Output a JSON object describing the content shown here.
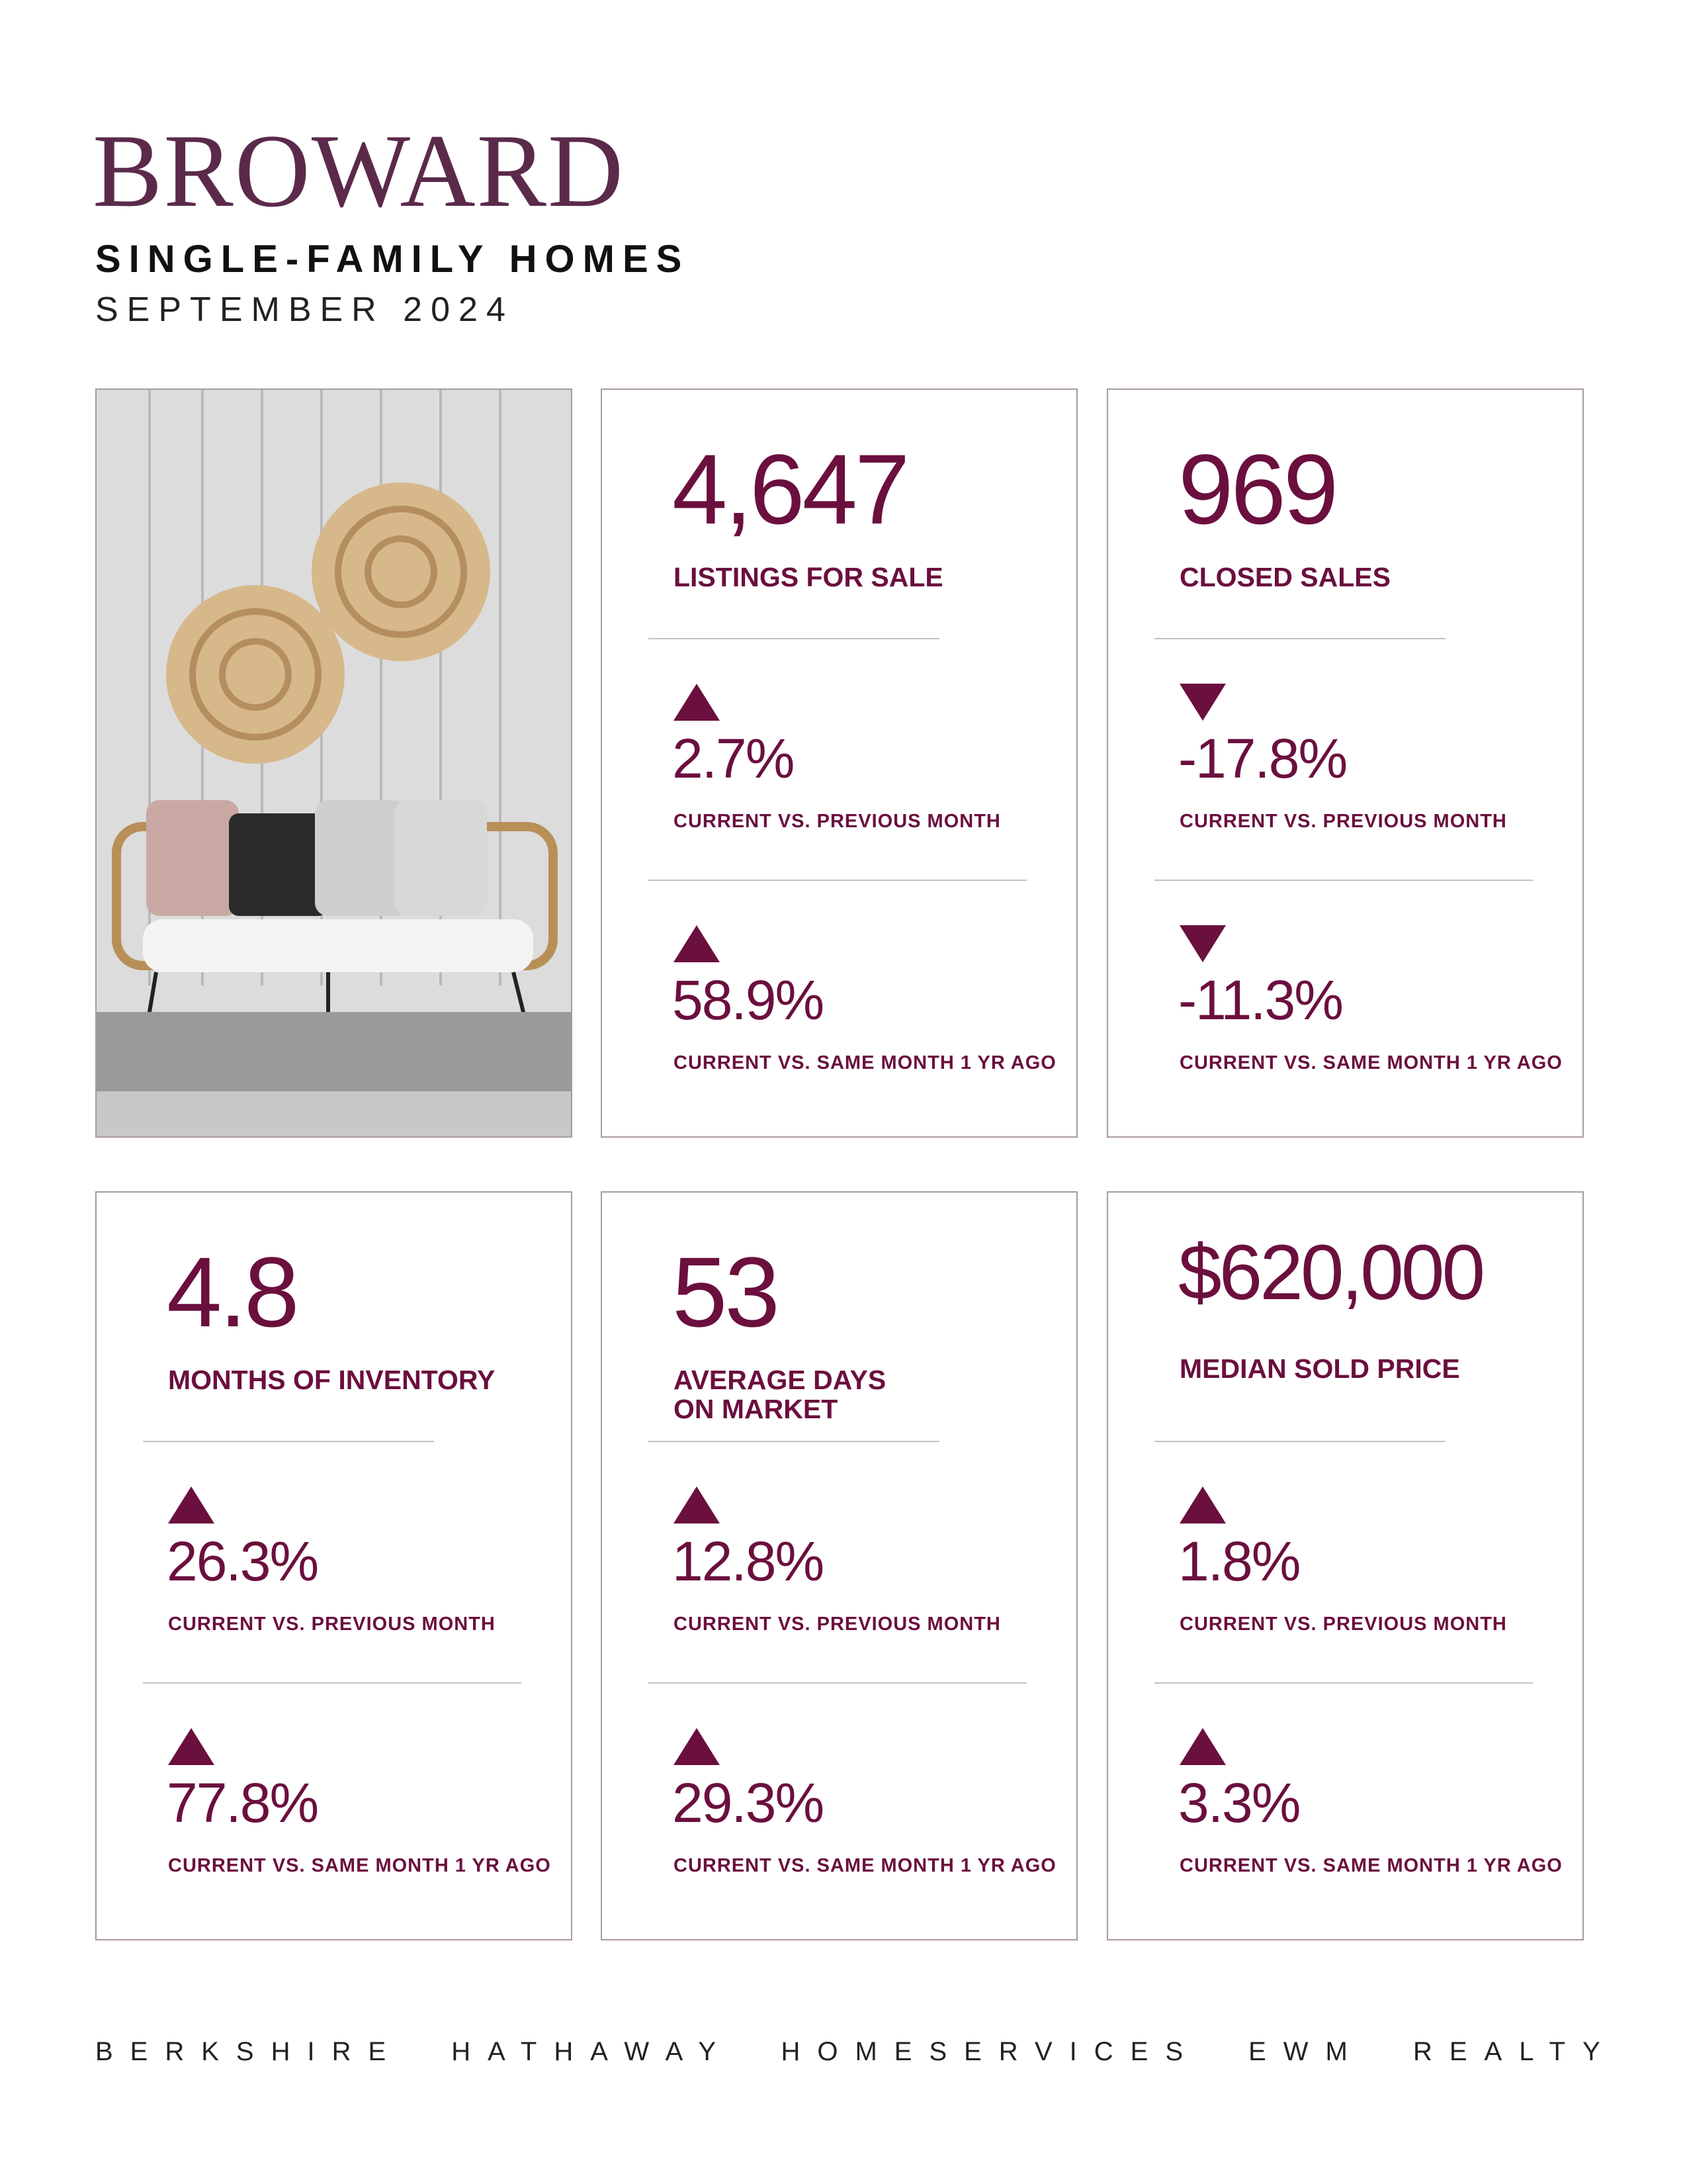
{
  "header": {
    "title": "BROWARD",
    "subtitle": "SINGLE-FAMILY HOMES",
    "date": "SEPTEMBER 2024"
  },
  "cards": [
    {
      "value": "4,647",
      "label": "LISTINGS FOR SALE",
      "changes": [
        {
          "value": "2.7%",
          "label": "CURRENT VS. PREVIOUS MONTH"
        },
        {
          "value": "58.9%",
          "label": "CURRENT VS. SAME MONTH 1 YR AGO"
        }
      ]
    },
    {
      "value": "969",
      "label": "CLOSED SALES",
      "changes": [
        {
          "value": "-17.8%",
          "label": "CURRENT VS. PREVIOUS MONTH"
        },
        {
          "value": "-11.3%",
          "label": "CURRENT VS. SAME MONTH 1 YR AGO"
        }
      ]
    },
    {
      "value": "4.8",
      "label": "MONTHS OF INVENTORY",
      "changes": [
        {
          "value": "26.3%",
          "label": "CURRENT VS. PREVIOUS MONTH"
        },
        {
          "value": "77.8%",
          "label": "CURRENT VS. SAME MONTH 1 YR AGO"
        }
      ]
    },
    {
      "value": "53",
      "label": "AVERAGE DAYS ON MARKET",
      "changes": [
        {
          "value": "12.8%",
          "label": "CURRENT VS. PREVIOUS MONTH"
        },
        {
          "value": "29.3%",
          "label": "CURRENT VS. SAME MONTH 1 YR AGO"
        }
      ]
    },
    {
      "value": "$620,000",
      "label": "MEDIAN SOLD PRICE",
      "changes": [
        {
          "value": "1.8%",
          "label": "CURRENT VS. PREVIOUS MONTH"
        },
        {
          "value": "3.3%",
          "label": "CURRENT VS. SAME MONTH 1 YR AGO"
        }
      ]
    }
  ],
  "footer": "BERKSHIRE HATHAWAY HOMESERVICES EWM REALTY"
}
